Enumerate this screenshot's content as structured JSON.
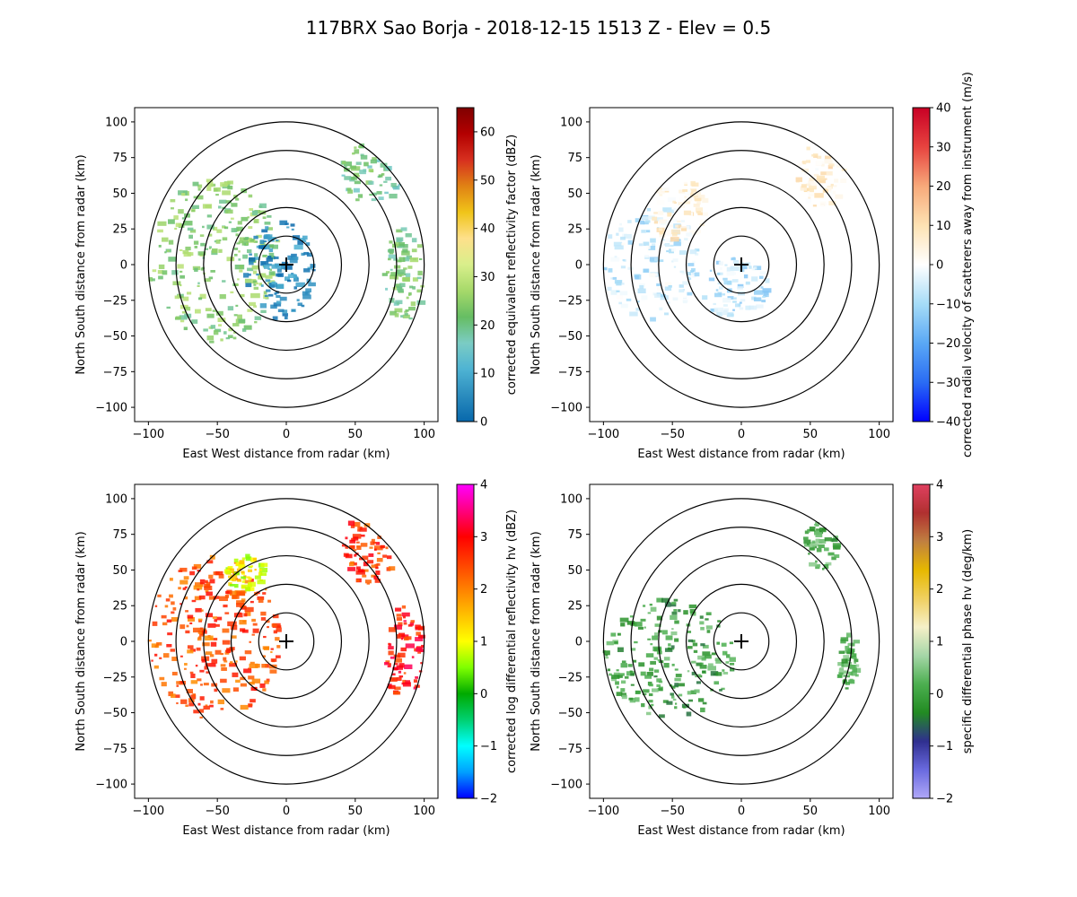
{
  "figure": {
    "title": "117BRX Sao Borja - 2018-12-15 1513 Z -  Elev = 0.5"
  },
  "chart_data": [
    {
      "type": "heatmap",
      "panel": "top-left",
      "field": "reflectivity",
      "title": "",
      "xlabel": "East West distance from radar (km)",
      "ylabel": "North South distance from radar (km)",
      "xlim": [
        -110,
        110
      ],
      "ylim": [
        -110,
        110
      ],
      "xticks": [
        -100,
        -50,
        0,
        50,
        100
      ],
      "yticks": [
        -100,
        -75,
        -50,
        -25,
        0,
        25,
        50,
        75,
        100
      ],
      "range_rings_km": [
        20,
        40,
        60,
        80,
        100
      ],
      "colorbar": {
        "label": "corrected equivalent reflectivity factor (dBZ)",
        "min": 0,
        "max": 65,
        "ticks": [
          0,
          10,
          20,
          30,
          40,
          50,
          60
        ],
        "colors": [
          "#0868ac",
          "#2b8cbe",
          "#4eb3d3",
          "#7bccc4",
          "#66bd63",
          "#a6d96a",
          "#d9ef8b",
          "#fee08b",
          "#f0c419",
          "#e08214",
          "#d7301f",
          "#b30000",
          "#7f0000"
        ]
      },
      "echo_regions": [
        {
          "name": "western band",
          "x": [
            -100,
            -5
          ],
          "y": [
            -55,
            60
          ],
          "value": 24
        },
        {
          "name": "core near radar",
          "x": [
            -30,
            20
          ],
          "y": [
            -38,
            30
          ],
          "value": 5
        },
        {
          "name": "northeast cells",
          "x": [
            40,
            85
          ],
          "y": [
            40,
            95
          ],
          "value": 20
        },
        {
          "name": "east cells",
          "x": [
            70,
            100
          ],
          "y": [
            -40,
            25
          ],
          "value": 22
        }
      ]
    },
    {
      "type": "heatmap",
      "panel": "top-right",
      "field": "velocity",
      "xlabel": "East West distance from radar (km)",
      "ylabel": "North South distance from radar (km)",
      "xlim": [
        -110,
        110
      ],
      "ylim": [
        -110,
        110
      ],
      "xticks": [
        -100,
        -50,
        0,
        50,
        100
      ],
      "yticks": [
        -100,
        -75,
        -50,
        -25,
        0,
        25,
        50,
        75,
        100
      ],
      "range_rings_km": [
        20,
        40,
        60,
        80,
        100
      ],
      "colorbar": {
        "label": "corrected radial velocity of scatterers away from instrument (m/s)",
        "min": -40,
        "max": 40,
        "ticks": [
          -40,
          -30,
          -20,
          -10,
          0,
          10,
          20,
          30,
          40
        ],
        "colors": [
          "#0000ff",
          "#2a6cf4",
          "#5aa8f5",
          "#a6dcf7",
          "#ffffff",
          "#fde2b3",
          "#f7a97a",
          "#e7433f",
          "#c80025"
        ]
      },
      "echo_regions": [
        {
          "name": "western inflow",
          "x": [
            -100,
            -30
          ],
          "y": [
            -40,
            40
          ],
          "value": -6
        },
        {
          "name": "northwest outflow",
          "x": [
            -65,
            -25
          ],
          "y": [
            15,
            60
          ],
          "value": 5
        },
        {
          "name": "northeast cells",
          "x": [
            40,
            75
          ],
          "y": [
            40,
            85
          ],
          "value": 6
        },
        {
          "name": "near radar",
          "x": [
            -30,
            20
          ],
          "y": [
            -38,
            5
          ],
          "value": -8
        }
      ]
    },
    {
      "type": "heatmap",
      "panel": "bottom-left",
      "field": "differential_reflectivity",
      "xlabel": "East West distance from radar (km)",
      "ylabel": "North South distance from radar (km)",
      "xlim": [
        -110,
        110
      ],
      "ylim": [
        -110,
        110
      ],
      "xticks": [
        -100,
        -50,
        0,
        50,
        100
      ],
      "yticks": [
        -100,
        -75,
        -50,
        -25,
        0,
        25,
        50,
        75,
        100
      ],
      "range_rings_km": [
        20,
        40,
        60,
        80,
        100
      ],
      "colorbar": {
        "label": "corrected log differential reflectivity hv (dBZ)",
        "min": -2,
        "max": 4,
        "ticks": [
          -2,
          -1,
          0,
          1,
          2,
          3,
          4
        ],
        "colors": [
          "#0000ff",
          "#00a0ff",
          "#00ffff",
          "#00d070",
          "#00aa00",
          "#7fff00",
          "#ffff00",
          "#ffc000",
          "#ff8000",
          "#ff4000",
          "#ff0000",
          "#ff0080",
          "#ff00ff"
        ]
      },
      "echo_regions": [
        {
          "name": "western band",
          "x": [
            -100,
            -5
          ],
          "y": [
            -55,
            60
          ],
          "value": 2.4
        },
        {
          "name": "northern arc",
          "x": [
            -45,
            -15
          ],
          "y": [
            35,
            60
          ],
          "value": 1.0
        },
        {
          "name": "northeast cells",
          "x": [
            40,
            80
          ],
          "y": [
            40,
            90
          ],
          "value": 2.6
        },
        {
          "name": "east cells",
          "x": [
            70,
            100
          ],
          "y": [
            -40,
            25
          ],
          "value": 2.8
        }
      ]
    },
    {
      "type": "heatmap",
      "panel": "bottom-right",
      "field": "specific_differential_phase",
      "xlabel": "East West distance from radar (km)",
      "ylabel": "North South distance from radar (km)",
      "xlim": [
        -110,
        110
      ],
      "ylim": [
        -110,
        110
      ],
      "xticks": [
        -100,
        -50,
        0,
        50,
        100
      ],
      "yticks": [
        -100,
        -75,
        -50,
        -25,
        0,
        25,
        50,
        75,
        100
      ],
      "range_rings_km": [
        20,
        40,
        60,
        80,
        100
      ],
      "colorbar": {
        "label": "specific differential phase hv (deg/km)",
        "min": -2,
        "max": 4,
        "ticks": [
          -2,
          -1,
          0,
          1,
          2,
          3,
          4
        ],
        "colors": [
          "#b0a8f8",
          "#6a6adf",
          "#2f2f8f",
          "#228b22",
          "#4caf50",
          "#a5d6a7",
          "#f5f0c8",
          "#f0d060",
          "#e6b800",
          "#c08040",
          "#b03030",
          "#e04060"
        ]
      },
      "echo_regions": [
        {
          "name": "western band",
          "x": [
            -100,
            -5
          ],
          "y": [
            -55,
            30
          ],
          "value": 0.0
        },
        {
          "name": "northeast cells",
          "x": [
            45,
            70
          ],
          "y": [
            50,
            85
          ],
          "value": 0.1
        },
        {
          "name": "east cells",
          "x": [
            70,
            85
          ],
          "y": [
            -35,
            5
          ],
          "value": 0.2
        }
      ]
    }
  ]
}
